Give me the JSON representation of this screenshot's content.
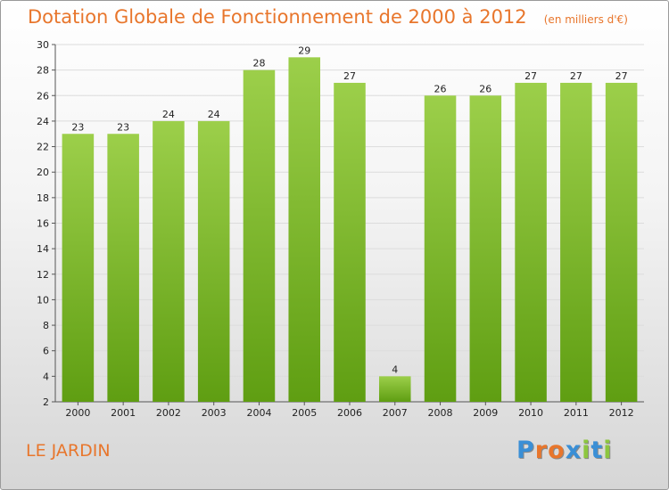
{
  "chart_data": {
    "type": "bar",
    "title": "Dotation Globale de Fonctionnement de 2000 à 2012",
    "subtitle": "(en milliers d'€)",
    "categories": [
      "2000",
      "2001",
      "2002",
      "2003",
      "2004",
      "2005",
      "2006",
      "2007",
      "2008",
      "2009",
      "2010",
      "2011",
      "2012"
    ],
    "values": [
      23,
      23,
      24,
      24,
      28,
      29,
      27,
      4,
      26,
      26,
      27,
      27,
      27
    ],
    "ylim": [
      2,
      30
    ],
    "yticks": [
      2,
      4,
      6,
      8,
      10,
      12,
      14,
      16,
      18,
      20,
      22,
      24,
      26,
      28,
      30
    ],
    "grid": true,
    "bar_color_top": "#9ccf4a",
    "bar_color_bottom": "#5f9e12"
  },
  "footer": {
    "commune": "LE JARDIN",
    "logo_text": "Proxiti",
    "logo_colors": [
      "#3a8fd6",
      "#e8762c",
      "#e8762c",
      "#3a8fd6",
      "#8dc63f",
      "#3a8fd6",
      "#8dc63f"
    ]
  }
}
